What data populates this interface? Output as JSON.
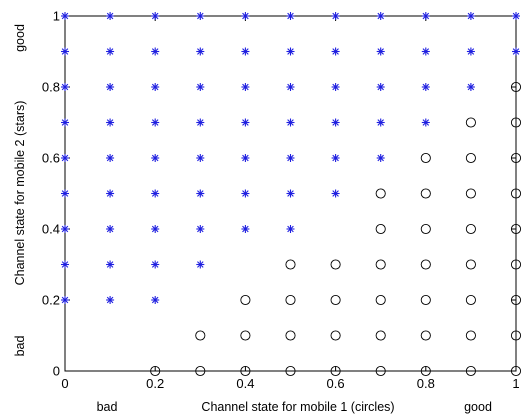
{
  "chart_data": {
    "type": "scatter",
    "title": "",
    "xlabel": "Channel state for mobile 1 (circles)",
    "ylabel": "Channel state for mobile 2 (stars)",
    "x_end_labels": {
      "low": "bad",
      "high": "good"
    },
    "y_end_labels": {
      "low": "bad",
      "high": "good"
    },
    "xlim": [
      0,
      1
    ],
    "ylim": [
      0,
      1
    ],
    "xticks": [
      "0",
      "0.2",
      "0.4",
      "0.6",
      "0.8",
      "1"
    ],
    "yticks": [
      "0",
      "0.2",
      "0.4",
      "0.6",
      "0.8",
      "1"
    ],
    "grid": false,
    "series": [
      {
        "marker": "star",
        "color": "#1f1fe0",
        "points": [
          [
            0,
            0.2
          ],
          [
            0,
            0.3
          ],
          [
            0,
            0.4
          ],
          [
            0,
            0.5
          ],
          [
            0,
            0.6
          ],
          [
            0,
            0.7
          ],
          [
            0,
            0.8
          ],
          [
            0,
            0.9
          ],
          [
            0,
            1
          ],
          [
            0.1,
            0.2
          ],
          [
            0.1,
            0.3
          ],
          [
            0.1,
            0.4
          ],
          [
            0.1,
            0.5
          ],
          [
            0.1,
            0.6
          ],
          [
            0.1,
            0.7
          ],
          [
            0.1,
            0.8
          ],
          [
            0.1,
            0.9
          ],
          [
            0.1,
            1
          ],
          [
            0.2,
            0.2
          ],
          [
            0.2,
            0.3
          ],
          [
            0.2,
            0.4
          ],
          [
            0.2,
            0.5
          ],
          [
            0.2,
            0.6
          ],
          [
            0.2,
            0.7
          ],
          [
            0.2,
            0.8
          ],
          [
            0.2,
            0.9
          ],
          [
            0.2,
            1
          ],
          [
            0.3,
            0.3
          ],
          [
            0.3,
            0.4
          ],
          [
            0.3,
            0.5
          ],
          [
            0.3,
            0.6
          ],
          [
            0.3,
            0.7
          ],
          [
            0.3,
            0.8
          ],
          [
            0.3,
            0.9
          ],
          [
            0.3,
            1
          ],
          [
            0.4,
            0.4
          ],
          [
            0.4,
            0.5
          ],
          [
            0.4,
            0.6
          ],
          [
            0.4,
            0.7
          ],
          [
            0.4,
            0.8
          ],
          [
            0.4,
            0.9
          ],
          [
            0.4,
            1
          ],
          [
            0.5,
            0.4
          ],
          [
            0.5,
            0.5
          ],
          [
            0.5,
            0.6
          ],
          [
            0.5,
            0.7
          ],
          [
            0.5,
            0.8
          ],
          [
            0.5,
            0.9
          ],
          [
            0.5,
            1
          ],
          [
            0.6,
            0.5
          ],
          [
            0.6,
            0.6
          ],
          [
            0.6,
            0.7
          ],
          [
            0.6,
            0.8
          ],
          [
            0.6,
            0.9
          ],
          [
            0.6,
            1
          ],
          [
            0.7,
            0.6
          ],
          [
            0.7,
            0.7
          ],
          [
            0.7,
            0.8
          ],
          [
            0.7,
            0.9
          ],
          [
            0.7,
            1
          ],
          [
            0.8,
            0.7
          ],
          [
            0.8,
            0.8
          ],
          [
            0.8,
            0.9
          ],
          [
            0.8,
            1
          ],
          [
            0.9,
            0.8
          ],
          [
            0.9,
            0.9
          ],
          [
            0.9,
            1
          ],
          [
            1,
            0.9
          ],
          [
            1,
            1
          ]
        ]
      },
      {
        "marker": "circle",
        "color": "#000000",
        "points": [
          [
            0.2,
            0
          ],
          [
            0.3,
            0
          ],
          [
            0.3,
            0.1
          ],
          [
            0.4,
            0
          ],
          [
            0.4,
            0.1
          ],
          [
            0.4,
            0.2
          ],
          [
            0.5,
            0
          ],
          [
            0.5,
            0.1
          ],
          [
            0.5,
            0.2
          ],
          [
            0.5,
            0.3
          ],
          [
            0.6,
            0
          ],
          [
            0.6,
            0.1
          ],
          [
            0.6,
            0.2
          ],
          [
            0.6,
            0.3
          ],
          [
            0.7,
            0
          ],
          [
            0.7,
            0.1
          ],
          [
            0.7,
            0.2
          ],
          [
            0.7,
            0.3
          ],
          [
            0.7,
            0.4
          ],
          [
            0.7,
            0.5
          ],
          [
            0.8,
            0
          ],
          [
            0.8,
            0.1
          ],
          [
            0.8,
            0.2
          ],
          [
            0.8,
            0.3
          ],
          [
            0.8,
            0.4
          ],
          [
            0.8,
            0.5
          ],
          [
            0.8,
            0.6
          ],
          [
            0.9,
            0
          ],
          [
            0.9,
            0.1
          ],
          [
            0.9,
            0.2
          ],
          [
            0.9,
            0.3
          ],
          [
            0.9,
            0.4
          ],
          [
            0.9,
            0.5
          ],
          [
            0.9,
            0.6
          ],
          [
            0.9,
            0.7
          ],
          [
            1,
            0
          ],
          [
            1,
            0.1
          ],
          [
            1,
            0.2
          ],
          [
            1,
            0.3
          ],
          [
            1,
            0.4
          ],
          [
            1,
            0.5
          ],
          [
            1,
            0.6
          ],
          [
            1,
            0.7
          ],
          [
            1,
            0.8
          ]
        ]
      }
    ]
  }
}
